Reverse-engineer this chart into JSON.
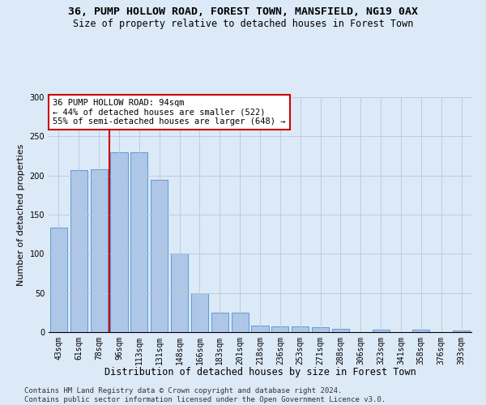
{
  "title": "36, PUMP HOLLOW ROAD, FOREST TOWN, MANSFIELD, NG19 0AX",
  "subtitle": "Size of property relative to detached houses in Forest Town",
  "xlabel": "Distribution of detached houses by size in Forest Town",
  "ylabel": "Number of detached properties",
  "bar_values": [
    133,
    207,
    208,
    230,
    230,
    195,
    100,
    50,
    25,
    25,
    8,
    7,
    7,
    6,
    4,
    0,
    3,
    0,
    3,
    0,
    2
  ],
  "categories": [
    "43sqm",
    "61sqm",
    "78sqm",
    "96sqm",
    "113sqm",
    "131sqm",
    "148sqm",
    "166sqm",
    "183sqm",
    "201sqm",
    "218sqm",
    "236sqm",
    "253sqm",
    "271sqm",
    "288sqm",
    "306sqm",
    "323sqm",
    "341sqm",
    "358sqm",
    "376sqm",
    "393sqm"
  ],
  "bar_color": "#aec6e8",
  "bar_edge_color": "#5b9bd5",
  "bg_color": "#dce9f7",
  "vline_color": "#cc0000",
  "annotation_text": "36 PUMP HOLLOW ROAD: 94sqm\n← 44% of detached houses are smaller (522)\n55% of semi-detached houses are larger (648) →",
  "annotation_box_color": "#ffffff",
  "annotation_box_edge": "#cc0000",
  "ylim": [
    0,
    300
  ],
  "footnote": "Contains HM Land Registry data © Crown copyright and database right 2024.\nContains public sector information licensed under the Open Government Licence v3.0.",
  "title_fontsize": 9.5,
  "subtitle_fontsize": 8.5,
  "xlabel_fontsize": 8.5,
  "ylabel_fontsize": 8,
  "tick_fontsize": 7,
  "annot_fontsize": 7.5,
  "footnote_fontsize": 6.5
}
